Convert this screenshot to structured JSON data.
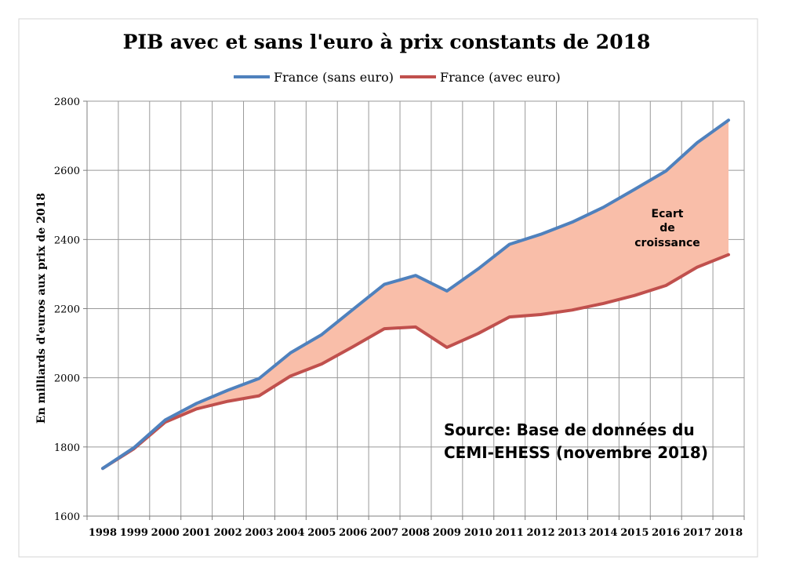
{
  "chart_data": {
    "type": "line",
    "title": "PIB avec et sans l'euro à prix constants de 2018",
    "ylabel": "En milliards d'euros aux prix de 2018",
    "xlabel": "",
    "categories": [
      "1998",
      "1999",
      "2000",
      "2001",
      "2002",
      "2003",
      "2004",
      "2005",
      "2006",
      "2007",
      "2008",
      "2009",
      "2010",
      "2011",
      "2012",
      "2013",
      "2014",
      "2015",
      "2016",
      "2017",
      "2018"
    ],
    "ylim": [
      1600,
      2800
    ],
    "yticks": [
      "1600",
      "1800",
      "2000",
      "2200",
      "2400",
      "2600",
      "2800"
    ],
    "grid": true,
    "legend_position": "top-center",
    "series": [
      {
        "name": "France (sans euro)",
        "color": "#4f81bd",
        "values": [
          1738,
          1798,
          1878,
          1926,
          1964,
          1998,
          2072,
          2125,
          2198,
          2270,
          2296,
          2251,
          2315,
          2386,
          2415,
          2450,
          2493,
          2545,
          2598,
          2680,
          2745
        ]
      },
      {
        "name": "France (avec euro)",
        "color": "#c0504d",
        "values": [
          1738,
          1795,
          1872,
          1910,
          1932,
          1948,
          2005,
          2040,
          2090,
          2142,
          2147,
          2088,
          2128,
          2176,
          2183,
          2196,
          2215,
          2238,
          2267,
          2320,
          2356
        ]
      }
    ],
    "fill": {
      "color": "#f9bea9",
      "between": [
        "France (sans euro)",
        "France (avec euro)"
      ]
    },
    "annotations": {
      "gap_label_lines": [
        "Ecart",
        "de",
        "croissance"
      ],
      "source_lines": [
        "Source: Base de données du",
        "CEMI-EHESS (novembre 2018)"
      ]
    }
  }
}
